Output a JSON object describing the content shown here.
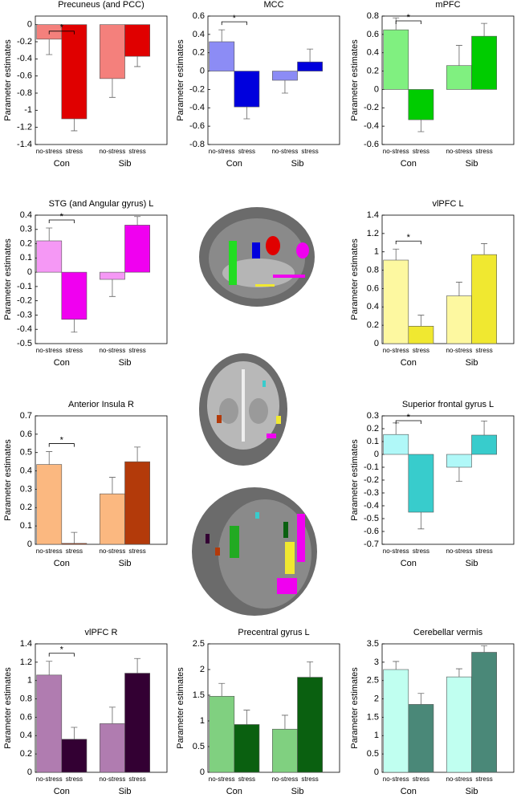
{
  "chart_data": [
    {
      "type": "bar",
      "title": "Precuneus (and PCC)",
      "ylabel": "Parameter estimates",
      "categories": [
        "Con",
        "Sib"
      ],
      "series": [
        {
          "name": "no-stress",
          "color": "#f4807c",
          "values": [
            -0.17,
            -0.63
          ],
          "errors": [
            0.18,
            0.22
          ]
        },
        {
          "name": "stress",
          "color": "#e00000",
          "values": [
            -1.1,
            -0.37
          ],
          "errors": [
            0.14,
            0.12
          ]
        }
      ],
      "ylim": [
        -1.4,
        0.1
      ],
      "yticks": [
        -1.4,
        -1.2,
        -1,
        -0.8,
        -0.6,
        -0.4,
        -0.2,
        0
      ],
      "annotation": "*"
    },
    {
      "type": "bar",
      "title": "MCC",
      "ylabel": "Parameter estimates",
      "categories": [
        "Con",
        "Sib"
      ],
      "series": [
        {
          "name": "no-stress",
          "color": "#8c8cf5",
          "values": [
            0.32,
            -0.1
          ],
          "errors": [
            0.13,
            0.14
          ]
        },
        {
          "name": "stress",
          "color": "#0000dd",
          "values": [
            -0.39,
            0.1
          ],
          "errors": [
            0.13,
            0.14
          ]
        }
      ],
      "ylim": [
        -0.8,
        0.6
      ],
      "yticks": [
        -0.8,
        -0.6,
        -0.4,
        -0.2,
        0,
        0.2,
        0.4,
        0.6
      ],
      "annotation": "*"
    },
    {
      "type": "bar",
      "title": "mPFC",
      "ylabel": "Parameter estimates",
      "categories": [
        "Con",
        "Sib"
      ],
      "series": [
        {
          "name": "no-stress",
          "color": "#80f080",
          "values": [
            0.65,
            0.26
          ],
          "errors": [
            0.13,
            0.22
          ]
        },
        {
          "name": "stress",
          "color": "#00cc00",
          "values": [
            -0.33,
            0.58
          ],
          "errors": [
            0.13,
            0.14
          ]
        }
      ],
      "ylim": [
        -0.6,
        0.8
      ],
      "yticks": [
        -0.6,
        -0.4,
        -0.2,
        0,
        0.2,
        0.4,
        0.6,
        0.8
      ],
      "annotation": "*"
    },
    {
      "type": "bar",
      "title": "STG (and Angular gyrus) L",
      "ylabel": "Parameter estimates",
      "categories": [
        "Con",
        "Sib"
      ],
      "series": [
        {
          "name": "no-stress",
          "color": "#f598f5",
          "values": [
            0.22,
            -0.05
          ],
          "errors": [
            0.09,
            0.12
          ]
        },
        {
          "name": "stress",
          "color": "#f000f0",
          "values": [
            -0.33,
            0.33
          ],
          "errors": [
            0.09,
            0.06
          ]
        }
      ],
      "ylim": [
        -0.5,
        0.4
      ],
      "yticks": [
        -0.5,
        -0.4,
        -0.3,
        -0.2,
        -0.1,
        0,
        0.1,
        0.2,
        0.3,
        0.4
      ],
      "annotation": "*"
    },
    {
      "type": "bar",
      "title": "vlPFC L",
      "ylabel": "Parameter estimates",
      "categories": [
        "Con",
        "Sib"
      ],
      "series": [
        {
          "name": "no-stress",
          "color": "#fdf8a0",
          "values": [
            0.91,
            0.52
          ],
          "errors": [
            0.12,
            0.15
          ]
        },
        {
          "name": "stress",
          "color": "#f0e830",
          "values": [
            0.19,
            0.97
          ],
          "errors": [
            0.12,
            0.12
          ]
        }
      ],
      "ylim": [
        0,
        1.4
      ],
      "yticks": [
        0,
        0.2,
        0.4,
        0.6,
        0.8,
        1,
        1.2,
        1.4
      ],
      "annotation": "*"
    },
    {
      "type": "bar",
      "title": "Anterior Insula R",
      "ylabel": "Parameter estimates",
      "categories": [
        "Con",
        "Sib"
      ],
      "series": [
        {
          "name": "no-stress",
          "color": "#fbb880",
          "values": [
            0.435,
            0.275
          ],
          "errors": [
            0.07,
            0.09
          ]
        },
        {
          "name": "stress",
          "color": "#b33a0a",
          "values": [
            0.005,
            0.45
          ],
          "errors": [
            0.06,
            0.08
          ]
        }
      ],
      "ylim": [
        0,
        0.7
      ],
      "yticks": [
        0,
        0.1,
        0.2,
        0.3,
        0.4,
        0.5,
        0.6,
        0.7
      ],
      "annotation": "*"
    },
    {
      "type": "bar",
      "title": "Superior frontal gyrus L",
      "ylabel": "Parameter estimates",
      "categories": [
        "Con",
        "Sib"
      ],
      "series": [
        {
          "name": "no-stress",
          "color": "#b0f8f8",
          "values": [
            0.155,
            -0.1
          ],
          "errors": [
            0.09,
            0.11
          ]
        },
        {
          "name": "stress",
          "color": "#38cccc",
          "values": [
            -0.45,
            0.15
          ],
          "errors": [
            0.13,
            0.11
          ]
        }
      ],
      "ylim": [
        -0.7,
        0.3
      ],
      "yticks": [
        -0.7,
        -0.6,
        -0.5,
        -0.4,
        -0.3,
        -0.2,
        -0.1,
        0,
        0.1,
        0.2,
        0.3
      ],
      "annotation": "*"
    },
    {
      "type": "bar",
      "title": "vlPFC R",
      "ylabel": "Parameter estimates",
      "categories": [
        "Con",
        "Sib"
      ],
      "series": [
        {
          "name": "no-stress",
          "color": "#b07cb0",
          "values": [
            1.06,
            0.53
          ],
          "errors": [
            0.15,
            0.18
          ]
        },
        {
          "name": "stress",
          "color": "#330033",
          "values": [
            0.36,
            1.08
          ],
          "errors": [
            0.13,
            0.16
          ]
        }
      ],
      "ylim": [
        0,
        1.4
      ],
      "yticks": [
        0,
        0.2,
        0.4,
        0.6,
        0.8,
        1,
        1.2,
        1.4
      ],
      "annotation": "*"
    },
    {
      "type": "bar",
      "title": "Precentral gyrus L",
      "ylabel": "Parameter estimates",
      "categories": [
        "Con",
        "Sib"
      ],
      "series": [
        {
          "name": "no-stress",
          "color": "#80d080",
          "values": [
            1.48,
            0.84
          ],
          "errors": [
            0.25,
            0.27
          ]
        },
        {
          "name": "stress",
          "color": "#0a6010",
          "values": [
            0.93,
            1.85
          ],
          "errors": [
            0.28,
            0.3
          ]
        }
      ],
      "ylim": [
        0,
        2.5
      ],
      "yticks": [
        0,
        0.5,
        1,
        1.5,
        2,
        2.5
      ]
    },
    {
      "type": "bar",
      "title": "Cerebellar vermis",
      "ylabel": "Parameter estimates",
      "categories": [
        "Con",
        "Sib"
      ],
      "series": [
        {
          "name": "no-stress",
          "color": "#c0fff0",
          "values": [
            2.8,
            2.6
          ],
          "errors": [
            0.22,
            0.22
          ]
        },
        {
          "name": "stress",
          "color": "#4a8878",
          "values": [
            1.85,
            3.27
          ],
          "errors": [
            0.3,
            0.18
          ]
        }
      ],
      "ylim": [
        0,
        3.5
      ],
      "yticks": [
        0,
        0.5,
        1,
        1.5,
        2,
        2.5,
        3,
        3.5
      ]
    }
  ]
}
